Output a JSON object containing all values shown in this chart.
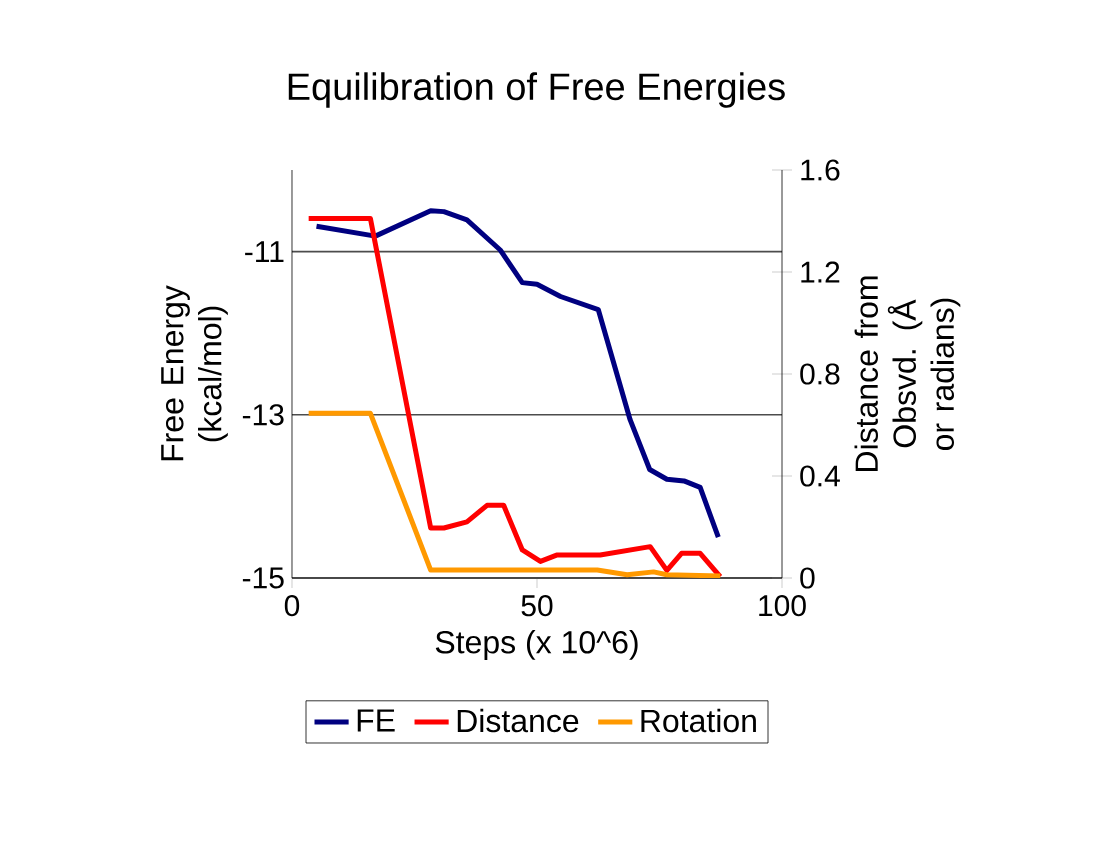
{
  "chart_data": {
    "type": "line",
    "title": "Equilibration of Free Energies",
    "xlabel": "Steps (x 10^6)",
    "ylabel": "Free Energy (kcal/mol)",
    "y2label": "Distance from Obsvd. (Å or radians)",
    "xlim": [
      0,
      100
    ],
    "xticks": [
      0,
      50,
      100
    ],
    "ylim": [
      -15,
      -10
    ],
    "yticks": [
      -15,
      -13,
      -11
    ],
    "y2lim": [
      0,
      1.6
    ],
    "y2ticks": [
      0,
      0.4,
      0.8,
      1.2,
      1.6
    ],
    "grid": "y",
    "legend": "bottom",
    "marker": "none",
    "line_style": "solid",
    "series": [
      {
        "name": "FE",
        "color": "#000080",
        "axis": "y",
        "x": [
          5,
          17,
          28.3,
          31,
          35.7,
          42.5,
          47,
          50,
          54.8,
          62.5,
          69,
          73,
          76.5,
          80,
          83.3,
          87
        ],
        "values": [
          -10.69,
          -10.81,
          -10.5,
          -10.51,
          -10.61,
          -10.98,
          -11.38,
          -11.4,
          -11.55,
          -11.71,
          -13.06,
          -13.67,
          -13.79,
          -13.81,
          -13.89,
          -14.5
        ]
      },
      {
        "name": "Distance",
        "color": "#ff0000",
        "axis": "y2",
        "x": [
          3.4,
          16,
          28.3,
          31,
          35.7,
          39.8,
          43.2,
          47,
          50.7,
          54,
          62.9,
          73.1,
          76.5,
          79.5,
          83.3,
          87.4
        ],
        "values": [
          1.41,
          1.41,
          0.196,
          0.196,
          0.22,
          0.285,
          0.285,
          0.11,
          0.065,
          0.09,
          0.09,
          0.123,
          0.03,
          0.097,
          0.097,
          0.005
        ]
      },
      {
        "name": "Rotation",
        "color": "#ff9900",
        "axis": "y2",
        "x": [
          3.4,
          16,
          28.3,
          62.3,
          68.4,
          73.8,
          76.5,
          87.4
        ],
        "values": [
          0.646,
          0.646,
          0.031,
          0.031,
          0.013,
          0.024,
          0.013,
          0.008
        ]
      }
    ]
  }
}
